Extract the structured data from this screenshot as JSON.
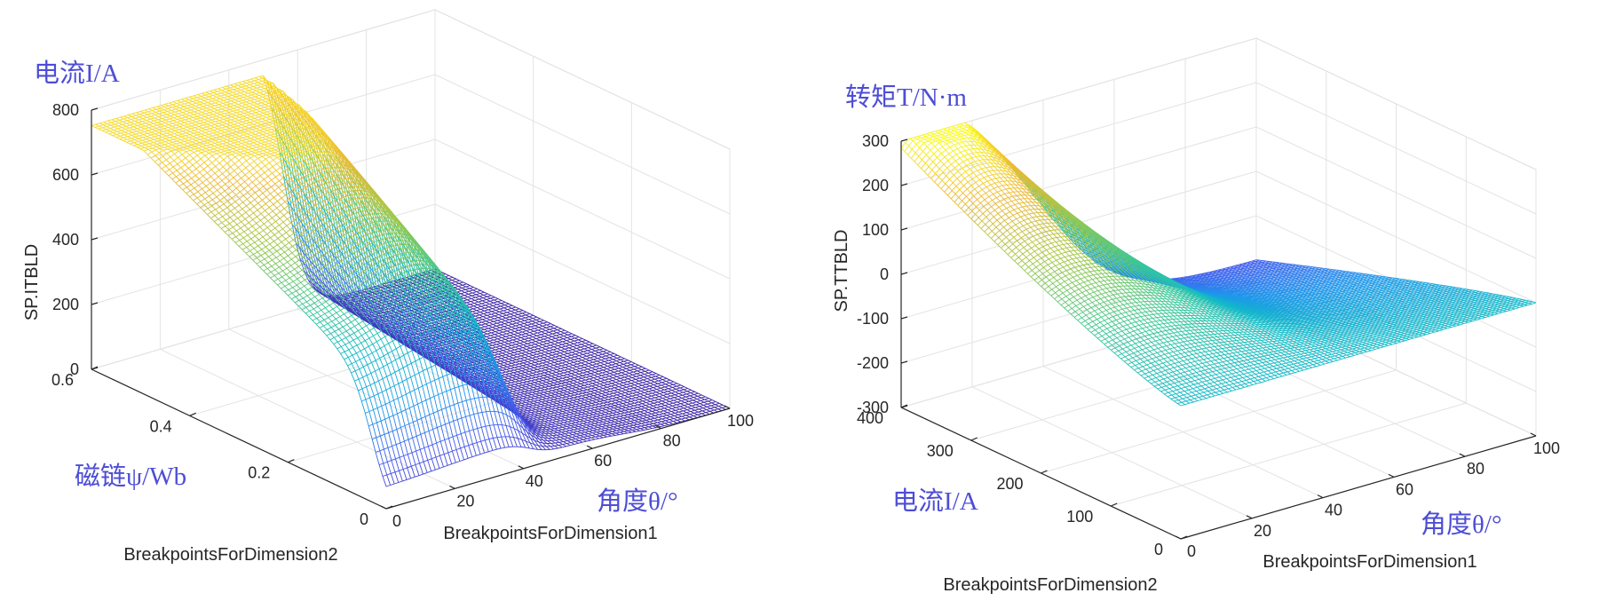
{
  "chart_data": [
    {
      "type": "surface",
      "zlabel": "SP.ITBLD",
      "xlabel": "BreakpointsForDimension1",
      "ylabel": "BreakpointsForDimension2",
      "x_ticks": [
        "0",
        "20",
        "40",
        "60",
        "80",
        "100"
      ],
      "y_ticks": [
        "0",
        "0.2",
        "0.4",
        "0.6"
      ],
      "z_ticks": [
        "0",
        "200",
        "400",
        "600",
        "800"
      ],
      "xlim": [
        0,
        100
      ],
      "ylim": [
        0,
        0.6
      ],
      "zlim": [
        0,
        800
      ],
      "annotations": {
        "z": "电流I/A",
        "y": "磁链ψ/Wb",
        "x": "角度θ/°"
      },
      "surface_desc": "current vs angle and flux linkage; peak ~750 A near angle 0-30 at high flux, falling to ~0 beyond angle 55",
      "colormap": "parula"
    },
    {
      "type": "surface",
      "zlabel": "SP.TTBLD",
      "xlabel": "BreakpointsForDimension1",
      "ylabel": "BreakpointsForDimension2",
      "x_ticks": [
        "0",
        "20",
        "40",
        "60",
        "80",
        "100"
      ],
      "y_ticks": [
        "0",
        "100",
        "200",
        "300",
        "400"
      ],
      "z_ticks": [
        "-300",
        "-200",
        "-100",
        "0",
        "100",
        "200",
        "300"
      ],
      "xlim": [
        0,
        100
      ],
      "ylim": [
        0,
        400
      ],
      "zlim": [
        -300,
        300
      ],
      "annotations": {
        "z": "转矩T/N·m",
        "y": "电流I/A",
        "x": "角度θ/°"
      },
      "surface_desc": "torque vs angle and current; peak ~300 N·m near angle 0 at max current, negative ~-200 N·m at high angle and high current",
      "colormap": "parula"
    }
  ]
}
